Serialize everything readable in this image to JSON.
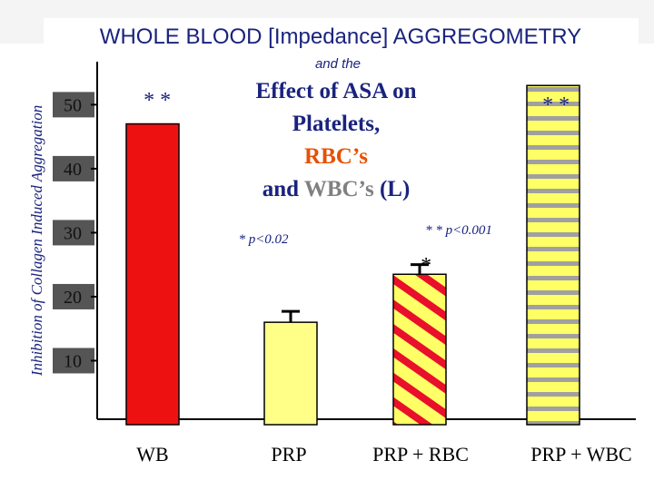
{
  "chart_data": {
    "type": "bar",
    "title": "WHOLE BLOOD [Impedance] AGGREGOMETRY",
    "subtitle": "and the",
    "heading_lines": [
      [
        {
          "text": "Effect of ASA on",
          "color": "#1a237e"
        }
      ],
      [
        {
          "text": "Platelets,",
          "color": "#1a237e"
        }
      ],
      [
        {
          "text": "RBC’s",
          "color": "#e65100"
        }
      ],
      [
        {
          "text": "and ",
          "color": "#1a237e"
        },
        {
          "text": "WBC’s",
          "color": "#808080"
        },
        {
          "text": " (L)",
          "color": "#1a237e"
        }
      ]
    ],
    "y_label": "Inhibition of Collagen Induced Aggregation",
    "categories": [
      "WB",
      "PRP",
      "PRP + RBC",
      "PRP + WBC"
    ],
    "values": [
      47,
      16,
      23.5,
      53
    ],
    "errors": [
      null,
      1.7,
      1.5,
      null
    ],
    "colors": [
      "#ee1111",
      "#ffff88",
      "#ffff66",
      "#ffff66"
    ],
    "patterns": [
      null,
      null,
      "diagonal",
      "horizontal"
    ],
    "pattern_colors": [
      null,
      null,
      "#e8102a",
      "#a0a0a0"
    ],
    "ylim": [
      0,
      57
    ],
    "yticks": [
      10,
      20,
      30,
      40,
      50
    ],
    "annotations": [
      "* *",
      "* *",
      "* p<0.02",
      "* * p<0.001",
      "*"
    ]
  }
}
